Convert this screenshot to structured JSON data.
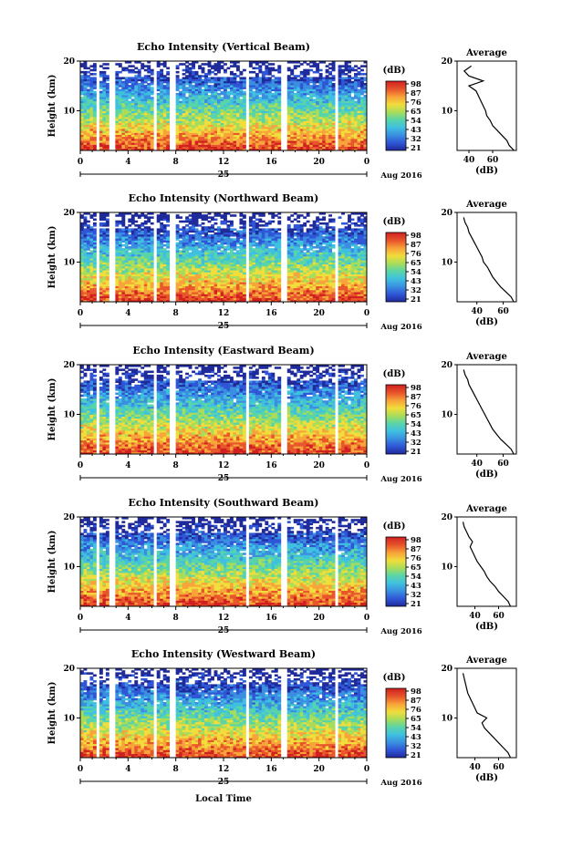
{
  "colorbar": {
    "unit": "(dB)",
    "tick_labels": [
      "98",
      "87",
      "76",
      "65",
      "54",
      "43",
      "32",
      "21"
    ],
    "colors": [
      "#1f2a9b",
      "#2f56d6",
      "#3a8fe0",
      "#3fc0e0",
      "#59d4a9",
      "#a7dd5a",
      "#f1dd3c",
      "#f7a43a",
      "#e8562b",
      "#d02020"
    ]
  },
  "x_axis": {
    "tick_labels": [
      "0",
      "4",
      "8",
      "12",
      "16",
      "20",
      "0"
    ],
    "day_label": "25",
    "month_label": "Aug 2016",
    "xlabel": "Local Time"
  },
  "profile_axis": {
    "title": "Average",
    "xlabel": "(dB)"
  },
  "chart_data": [
    {
      "type": "heatmap",
      "title": "Echo Intensity (Vertical Beam)",
      "ylabel": "Height (km)",
      "yticks": [
        "20",
        "10"
      ],
      "xlim": [
        0,
        24
      ],
      "ylim": [
        2,
        20
      ],
      "gaps_hours": [
        [
          1.3,
          1.7
        ],
        [
          2.4,
          2.8
        ],
        [
          6.1,
          6.5
        ],
        [
          7.6,
          8.0
        ],
        [
          13.8,
          14.2
        ],
        [
          16.9,
          17.3
        ],
        [
          21.3,
          21.7
        ]
      ],
      "profile": {
        "xticks": [
          "40",
          "60"
        ],
        "xlim": [
          30,
          80
        ],
        "yticks": [
          "20",
          "10"
        ],
        "height_km": [
          2,
          3,
          4,
          5,
          6,
          7,
          8,
          9,
          10,
          11,
          12,
          13,
          14,
          15,
          16,
          17,
          18,
          19
        ],
        "avg_db": [
          78,
          74,
          72,
          68,
          64,
          60,
          58,
          55,
          54,
          52,
          50,
          48,
          46,
          40,
          52,
          40,
          36,
          42
        ]
      }
    },
    {
      "type": "heatmap",
      "title": "Echo Intensity (Northward Beam)",
      "ylabel": "Height (km)",
      "yticks": [
        "20",
        "10"
      ],
      "xlim": [
        0,
        24
      ],
      "ylim": [
        2,
        20
      ],
      "gaps_hours": [
        [
          1.3,
          1.7
        ],
        [
          2.4,
          2.8
        ],
        [
          6.1,
          6.5
        ],
        [
          7.6,
          8.0
        ],
        [
          13.8,
          14.2
        ],
        [
          16.9,
          17.3
        ],
        [
          21.3,
          21.7
        ]
      ],
      "profile": {
        "xticks": [
          "40",
          "60"
        ],
        "xlim": [
          25,
          70
        ],
        "yticks": [
          "20",
          "10"
        ],
        "height_km": [
          2,
          3,
          4,
          5,
          6,
          7,
          8,
          9,
          10,
          11,
          12,
          13,
          14,
          15,
          16,
          17,
          18,
          19
        ],
        "avg_db": [
          68,
          66,
          62,
          58,
          55,
          52,
          50,
          48,
          45,
          44,
          42,
          40,
          38,
          36,
          34,
          33,
          31,
          30
        ]
      }
    },
    {
      "type": "heatmap",
      "title": "Echo Intensity (Eastward Beam)",
      "ylabel": "Height (km)",
      "yticks": [
        "20",
        "10"
      ],
      "xlim": [
        0,
        24
      ],
      "ylim": [
        2,
        20
      ],
      "gaps_hours": [
        [
          1.3,
          1.7
        ],
        [
          2.4,
          2.8
        ],
        [
          6.1,
          6.5
        ],
        [
          7.6,
          8.0
        ],
        [
          13.8,
          14.2
        ],
        [
          16.9,
          17.3
        ],
        [
          21.3,
          21.7
        ]
      ],
      "profile": {
        "xticks": [
          "40",
          "60"
        ],
        "xlim": [
          25,
          70
        ],
        "yticks": [
          "20",
          "10"
        ],
        "height_km": [
          2,
          3,
          4,
          5,
          6,
          7,
          8,
          9,
          10,
          11,
          12,
          13,
          14,
          15,
          16,
          17,
          18,
          19
        ],
        "avg_db": [
          68,
          66,
          62,
          58,
          55,
          52,
          50,
          48,
          46,
          44,
          42,
          40,
          38,
          36,
          34,
          33,
          31,
          30
        ]
      }
    },
    {
      "type": "heatmap",
      "title": "Echo Intensity (Southward Beam)",
      "ylabel": "Height (km)",
      "yticks": [
        "20",
        "10"
      ],
      "xlim": [
        0,
        24
      ],
      "ylim": [
        2,
        20
      ],
      "gaps_hours": [
        [
          1.3,
          1.7
        ],
        [
          2.4,
          2.8
        ],
        [
          6.1,
          6.5
        ],
        [
          7.6,
          8.0
        ],
        [
          13.8,
          14.2
        ],
        [
          16.9,
          17.3
        ],
        [
          21.3,
          21.7
        ]
      ],
      "profile": {
        "xticks": [
          "40",
          "60"
        ],
        "xlim": [
          25,
          75
        ],
        "yticks": [
          "20",
          "10"
        ],
        "height_km": [
          2,
          3,
          4,
          5,
          6,
          7,
          8,
          9,
          10,
          11,
          12,
          13,
          14,
          15,
          16,
          17,
          18,
          19
        ],
        "avg_db": [
          70,
          68,
          64,
          60,
          57,
          53,
          50,
          48,
          45,
          42,
          40,
          38,
          36,
          38,
          35,
          33,
          31,
          30
        ]
      }
    },
    {
      "type": "heatmap",
      "title": "Echo Intensity (Westward Beam)",
      "ylabel": "Height (km)",
      "yticks": [
        "20",
        "10"
      ],
      "xlim": [
        0,
        24
      ],
      "ylim": [
        2,
        20
      ],
      "gaps_hours": [
        [
          1.3,
          1.7
        ],
        [
          2.4,
          2.8
        ],
        [
          6.1,
          6.5
        ],
        [
          7.6,
          8.0
        ],
        [
          13.8,
          14.2
        ],
        [
          16.9,
          17.3
        ],
        [
          21.3,
          21.7
        ]
      ],
      "profile": {
        "xticks": [
          "40",
          "60"
        ],
        "xlim": [
          25,
          75
        ],
        "yticks": [
          "20",
          "10"
        ],
        "height_km": [
          2,
          3,
          4,
          5,
          6,
          7,
          8,
          9,
          10,
          11,
          12,
          13,
          14,
          15,
          16,
          17,
          18,
          19
        ],
        "avg_db": [
          70,
          68,
          64,
          60,
          56,
          52,
          48,
          46,
          50,
          42,
          40,
          38,
          36,
          34,
          33,
          32,
          31,
          30
        ]
      }
    }
  ]
}
